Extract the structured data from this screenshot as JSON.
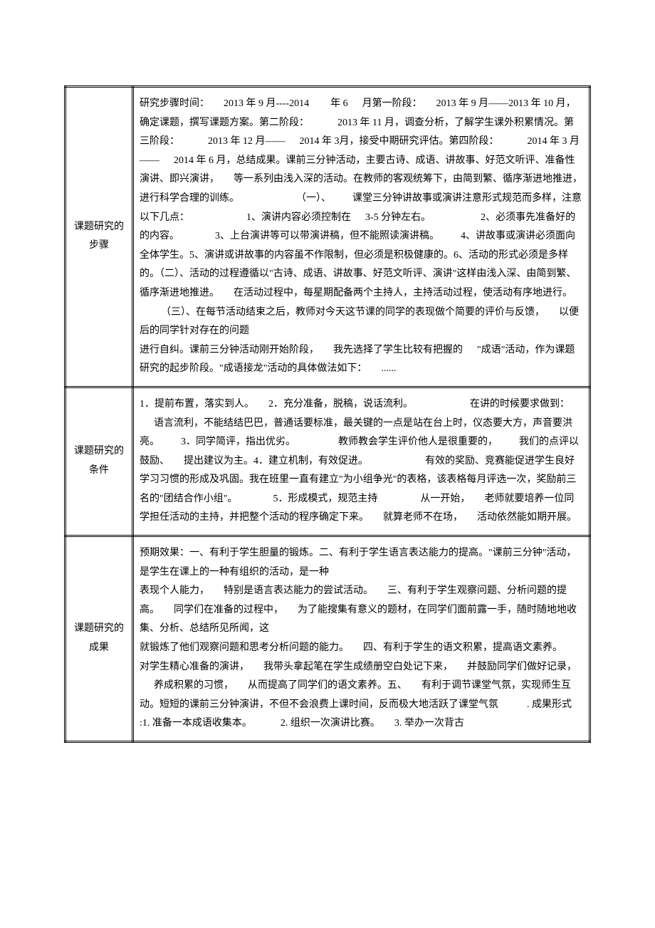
{
  "rows": [
    {
      "label_line1": "课题研究的",
      "label_line2": "步骤",
      "content_html": "研究步骤时间：<span class='gap w20'></span>2013 年 9 月----2014<span class='gap w30'></span>年 6<span class='gap w20'></span>月第一阶段：<span class='gap w20'></span>2013 年 9 月——2013 年 10 月，确定课题，撰写课题方案。第二阶段：<span class='gap w40'></span>2013 年 11 月，调查分析，了解学生课外积累情况。第三阶段：<span class='gap w40'></span>2013 年 12 月——<span class='gap w20'></span>2014 年 3月，接受中期研究评估。第四阶段：<span class='gap w40'></span>2014 年 3 月——<span class='gap w20'></span>2014 年 6 月，总结成果。课前三分钟活动，主要古诗、成语、讲故事、好范文听评、准备性演讲、即兴演讲，<span class='gap w20'></span>等一系列由浅入深的活动。在教师的客观统筹下，由简到繁、循序渐进地推进，进行科学合理的训练。<span class='gap w80'></span>（一）、<span class='gap w30'></span>课堂三分钟讲故事或演讲注意形式规范而多样，注意以下几点：<span class='gap w80'></span>1、演讲内容必须控制在<span class='gap w20'></span>3-5 分钟左右。<span class='gap w70'></span>2、必须事先准备好的的内容。<span class='gap w50'></span>3、上台演讲等可以带演讲稿，但不能照读演讲稿。<span class='gap w30'></span>4、讲故事或演讲必须面向全体学生。5、演讲或讲故事的内容虽不作限制，但必须是积极健康的。6、活动的形式必须是多样的。（二）、活动的过程遵循以\"古诗、成语、讲故事、好范文听评、演讲\"这样由浅入深、由简到繁、循序渐进地推进。<span class='gap w20'></span>在活动过程中，每星期配备两个主持人，主持活动过程，使活动有序地进行。<span class='gap w30'></span>（三）、在每节活动结束之后，教师对今天这节课的同学的表现做个简要的评价与反馈，<span class='gap w20'></span>以便后的同学针对存在的问题<br>进行自纠。课前三分钟活动刚开始阶段，<span class='gap w20'></span>我先选择了学生比较有把握的<span class='gap w20'></span>\"成语\"活动，作为课题研究的起步阶段。\"成语接龙\"活动的具体做法如下：<span class='gap w20'></span>......"
    },
    {
      "label_line1": "课题研究的",
      "label_line2": "条件",
      "content_html": "1．提前布置，落实到人。<span class='gap w20'></span>2．充分准备，脱稿，说话流利。<span class='gap w80'></span>在讲的时候要求做到：<span class='gap w20'></span>语言流利，不能结结巴巴，普通话要标准，最关键的一点是站在台上时，仪态要大方，声音要洪亮。<span class='gap w30'></span>3．同学简评，指出优劣。<span class='gap w60'></span>教师教会学生评价他人是很重要的，<span class='gap w30'></span>我们的点评以鼓励、<span class='gap w20'></span>提出建议为主。4．建立机制，有效促进。<span class='gap w80'></span>有效的奖励、竞赛能促进学生良好学习习惯的形成及巩固。我在班里一直有建立\"为小组争光\"的表格，该表格每月评选一次，奖励前三名的\"团结合作小组\"。<span class='gap w50'></span>5．形成模式，规范主持<span class='gap w60'></span>从一开始，<span class='gap w20'></span>老师就要培养一位同学担任活动的主持，并把整个活动的程序确定下来。<span class='gap w20'></span>就算老师不在场，<span class='gap w20'></span>活动依然能如期开展。"
    },
    {
      "label_line1": "课题研究的",
      "label_line2": "成果",
      "content_html": "预期效果：一、有利于学生胆量的锻炼。二、有利于学生语言表达能力的提高。\"课前三分钟\"活动，是学生在课上的一种有组织的活动，是一种<br>表现个人能力，<span class='gap w20'></span>特别是语言表达能力的尝试活动。<span class='gap w20'></span>三、有利于学生观察问题、分析问题的提高。<span class='gap w20'></span>同学们在准备的过程中，<span class='gap w20'></span>为了能搜集有意义的题材，在同学们面前露一手，随时随地地收集、分析、总结所见所闻，这<br>就锻炼了他们观察问题和思考分析问题的能力。<span class='gap w20'></span>四、有利于学生的语文积累，提高语文素养。<span class='gap w20'></span>对学生精心准备的演讲，<span class='gap w20'></span>我带头拿起笔在学生成绩册空白处记下来，<span class='gap w20'></span>并鼓励同学们做好记录，<span class='gap w20'></span>养成积累的习惯，<span class='gap w20'></span>从而提高了同学们的语文素养。五、<span class='gap w20'></span>有利于调节课堂气氛，实现师生互动。短短的课前三分钟演讲，不但不会浪费上课时间，反而极大地活跃了课堂气氛<span class='gap w40'></span>. 成果形式 :1. 准备一本成语收集本。<span class='gap w40'></span>2. 组织一次演讲比赛。<span class='gap w20'></span>3. 举办一次背古"
    }
  ]
}
